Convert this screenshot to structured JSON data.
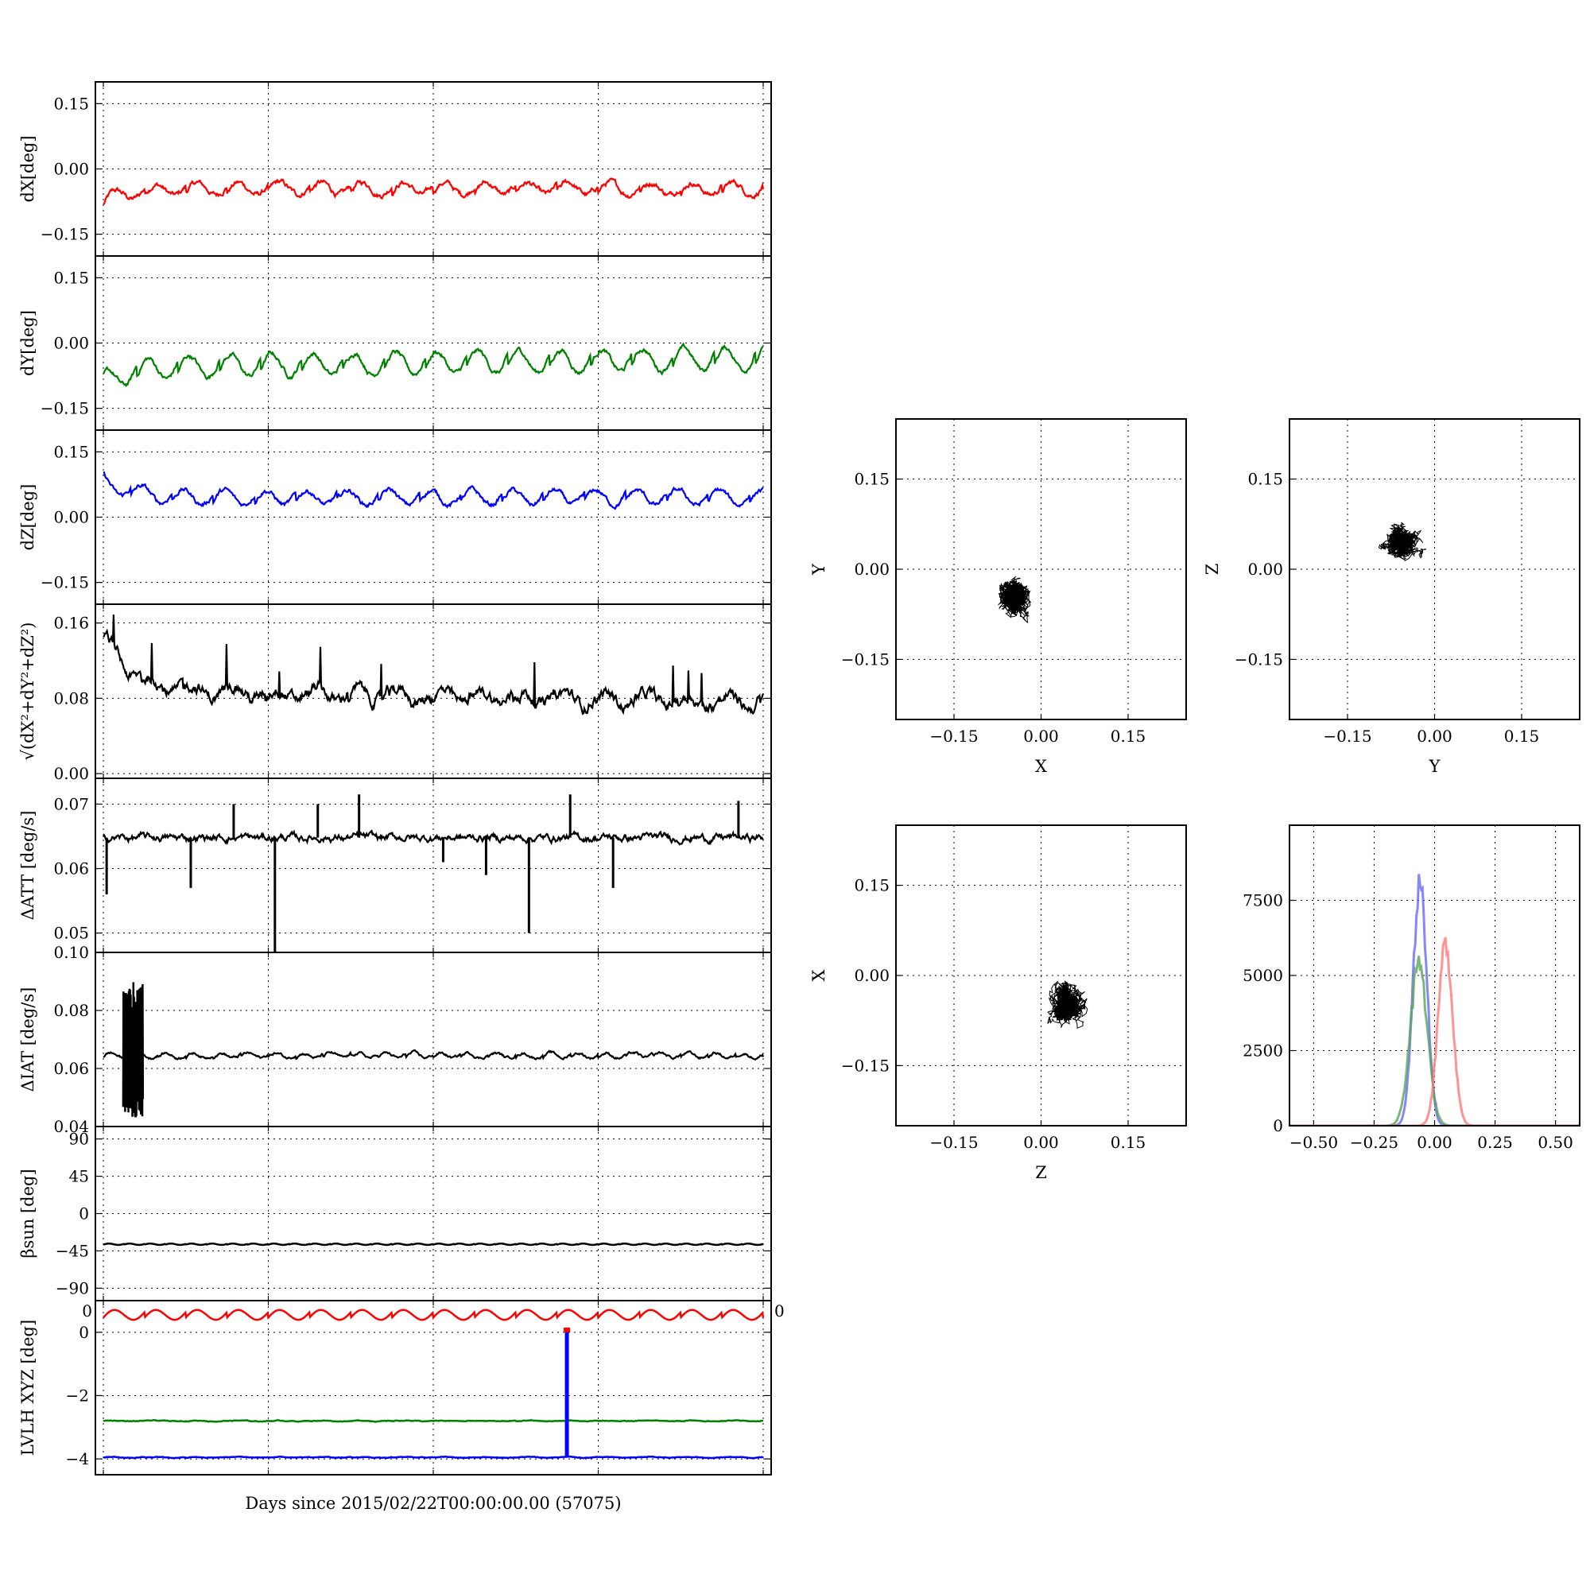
{
  "chart_data": [
    {
      "id": "dx",
      "type": "line",
      "ylabel": "dX[deg]",
      "ylim": [
        -0.2,
        0.2
      ],
      "yticks": [
        -0.15,
        0.0,
        0.15
      ],
      "ytick_labels": [
        "−0.15",
        "0.00",
        "0.15"
      ],
      "xlim": [
        0,
        40
      ],
      "grid": true,
      "series": [
        {
          "color": "#ff0000",
          "baseline": -0.045,
          "amplitude": 0.025,
          "cycles": 16,
          "phase": 0.0,
          "noise": 0.008,
          "trend": 0.0,
          "start_offset": -0.03
        }
      ]
    },
    {
      "id": "dy",
      "type": "line",
      "ylabel": "dY[deg]",
      "ylim": [
        -0.2,
        0.2
      ],
      "yticks": [
        -0.15,
        0.0,
        0.15
      ],
      "ytick_labels": [
        "−0.15",
        "0.00",
        "0.15"
      ],
      "xlim": [
        0,
        40
      ],
      "grid": true,
      "series": [
        {
          "color": "#008000",
          "baseline": -0.055,
          "amplitude": 0.045,
          "cycles": 16,
          "phase": 1.2,
          "noise": 0.007,
          "trend": 0.02,
          "start_offset": -0.04
        }
      ]
    },
    {
      "id": "dz",
      "type": "line",
      "ylabel": "dZ[deg]",
      "ylim": [
        -0.2,
        0.2
      ],
      "yticks": [
        -0.15,
        0.0,
        0.15
      ],
      "ytick_labels": [
        "−0.15",
        "0.00",
        "0.15"
      ],
      "xlim": [
        0,
        40
      ],
      "grid": true,
      "series": [
        {
          "color": "#0000ff",
          "baseline": 0.045,
          "amplitude": 0.03,
          "cycles": 16,
          "phase": 2.1,
          "noise": 0.007,
          "trend": 0.0,
          "start_offset": 0.04
        }
      ]
    },
    {
      "id": "mag",
      "type": "line",
      "ylabel": "√(dX²+dY²+dZ²)",
      "ylim": [
        -0.005,
        0.18
      ],
      "yticks": [
        0.0,
        0.08,
        0.16
      ],
      "ytick_labels": [
        "0.00",
        "0.08",
        "0.16"
      ],
      "xlim": [
        0,
        40
      ],
      "grid": true,
      "series": [
        {
          "color": "#000000",
          "baseline": 0.088,
          "amplitude": 0.012,
          "cycles": 16,
          "phase": 0.5,
          "noise": 0.008,
          "trend": -0.012,
          "start_offset": 0.06
        }
      ]
    },
    {
      "id": "datt",
      "type": "line",
      "ylabel": "ΔATT [deg/s]",
      "ylim": [
        0.047,
        0.074
      ],
      "yticks": [
        0.05,
        0.06,
        0.07
      ],
      "ytick_labels": [
        "0.05",
        "0.06",
        "0.07"
      ],
      "xlim": [
        0,
        40
      ],
      "grid": true,
      "series": [
        {
          "color": "#000000",
          "baseline": 0.0648,
          "amplitude": 0.0001,
          "cycles": 16,
          "phase": 0.0,
          "noise": 0.0007,
          "trend": 0.0,
          "start_offset": 0.0
        }
      ],
      "spikes": [
        {
          "x": 0.2,
          "y": 0.056
        },
        {
          "x": 5.3,
          "y": 0.057
        },
        {
          "x": 7.9,
          "y": 0.07
        },
        {
          "x": 10.4,
          "y": 0.047
        },
        {
          "x": 13.0,
          "y": 0.07
        },
        {
          "x": 15.5,
          "y": 0.0715
        },
        {
          "x": 20.6,
          "y": 0.061
        },
        {
          "x": 23.2,
          "y": 0.059
        },
        {
          "x": 25.8,
          "y": 0.05
        },
        {
          "x": 28.3,
          "y": 0.0715
        },
        {
          "x": 30.9,
          "y": 0.057
        },
        {
          "x": 38.5,
          "y": 0.0705
        }
      ]
    },
    {
      "id": "diat",
      "type": "line",
      "ylabel": "ΔIAT [deg/s]",
      "ylim": [
        0.04,
        0.1
      ],
      "yticks": [
        0.04,
        0.06,
        0.08,
        0.1
      ],
      "ytick_labels": [
        "0.04",
        "0.06",
        "0.08",
        "0.10"
      ],
      "xlim": [
        0,
        40
      ],
      "grid": true,
      "series": [
        {
          "color": "#000000",
          "baseline": 0.0645,
          "amplitude": 0.0015,
          "cycles": 24,
          "phase": 0.0,
          "noise": 0.0006,
          "trend": 0.0,
          "start_offset": 0.0
        }
      ],
      "burst": {
        "x_start": 1.2,
        "x_end": 2.4,
        "y_low": 0.043,
        "y_high": 0.09
      }
    },
    {
      "id": "beta",
      "type": "line",
      "ylabel": "βsun [deg]",
      "ylim": [
        -105,
        105
      ],
      "yticks": [
        -90,
        -45,
        0,
        45,
        90
      ],
      "ytick_labels": [
        "−90",
        "−45",
        "0",
        "45",
        "90"
      ],
      "xlim": [
        0,
        40
      ],
      "grid": true,
      "series": [
        {
          "color": "#000000",
          "baseline": -37,
          "amplitude": 1.5,
          "cycles": 32,
          "phase": 0.0,
          "noise": 0.0,
          "trend": 0.0,
          "start_offset": 0.0
        }
      ]
    },
    {
      "id": "lvlh",
      "type": "line",
      "ylabel": "LVLH XYZ [deg]",
      "xlabel": "Days since 2015/02/22T00:00:00.00 (57075)",
      "ylim": [
        -4.5,
        1.0
      ],
      "yticks": [
        -4,
        -2,
        0
      ],
      "ytick_labels": [
        "−4",
        "−2",
        "0"
      ],
      "corner_labels": [
        "0",
        "0"
      ],
      "xlim": [
        0,
        40
      ],
      "grid": true,
      "series": [
        {
          "color": "#ff0000",
          "baseline": 0.55,
          "amplitude": 0.28,
          "cycles": 16,
          "phase": 0.0,
          "noise": 0.0,
          "trend": 0.0,
          "start_offset": 0.0
        },
        {
          "color": "#008000",
          "baseline": -2.8,
          "amplitude": 0.02,
          "cycles": 16,
          "phase": 0.0,
          "noise": 0.015,
          "trend": 0.0,
          "start_offset": 0.0
        },
        {
          "color": "#0000ff",
          "baseline": -3.95,
          "amplitude": 0.02,
          "cycles": 16,
          "phase": 0.0,
          "noise": 0.012,
          "trend": 0.0,
          "start_offset": 0.0
        }
      ],
      "vline": {
        "x": 28.1,
        "y_from": -3.95,
        "y_to": 0.05,
        "color": "#0000ff"
      }
    },
    {
      "id": "scatter_xy",
      "type": "scatter",
      "xlabel": "X",
      "ylabel": "Y",
      "xlim": [
        -0.25,
        0.25
      ],
      "ylim": [
        -0.25,
        0.25
      ],
      "xticks": [
        -0.15,
        0.0,
        0.15
      ],
      "yticks": [
        -0.15,
        0.0,
        0.15
      ],
      "tick_labels": [
        "−0.15",
        "0.00",
        "0.15"
      ],
      "grid": true,
      "cloud": {
        "cx": -0.045,
        "cy": -0.045,
        "rx": 0.045,
        "ry": 0.05
      },
      "color": "#000000"
    },
    {
      "id": "scatter_yz",
      "type": "scatter",
      "xlabel": "Y",
      "ylabel": "Z",
      "xlim": [
        -0.25,
        0.25
      ],
      "ylim": [
        -0.25,
        0.25
      ],
      "xticks": [
        -0.15,
        0.0,
        0.15
      ],
      "yticks": [
        -0.15,
        0.0,
        0.15
      ],
      "tick_labels": [
        "−0.15",
        "0.00",
        "0.15"
      ],
      "grid": true,
      "cloud": {
        "cx": -0.055,
        "cy": 0.045,
        "rx": 0.05,
        "ry": 0.04
      },
      "color": "#000000"
    },
    {
      "id": "scatter_zx",
      "type": "scatter",
      "xlabel": "Z",
      "ylabel": "X",
      "xlim": [
        -0.25,
        0.25
      ],
      "ylim": [
        -0.25,
        0.25
      ],
      "xticks": [
        -0.15,
        0.0,
        0.15
      ],
      "yticks": [
        -0.15,
        0.0,
        0.15
      ],
      "tick_labels": [
        "−0.15",
        "0.00",
        "0.15"
      ],
      "grid": true,
      "cloud": {
        "cx": 0.045,
        "cy": -0.045,
        "rx": 0.045,
        "ry": 0.05
      },
      "color": "#000000"
    },
    {
      "id": "hist",
      "type": "histogram",
      "xlim": [
        -0.6,
        0.6
      ],
      "ylim": [
        0,
        10000
      ],
      "xticks": [
        -0.5,
        -0.25,
        0.0,
        0.25,
        0.5
      ],
      "xtick_labels": [
        "−0.50",
        "−0.25",
        "0.00",
        "0.25",
        "0.50"
      ],
      "yticks": [
        0,
        2500,
        5000,
        7500
      ],
      "ytick_labels": [
        "0",
        "2500",
        "5000",
        "7500"
      ],
      "grid": true,
      "series": [
        {
          "color": "#6666ff",
          "center": -0.06,
          "width": 0.028,
          "peak": 8500
        },
        {
          "color": "#5aa55a",
          "center": -0.065,
          "width": 0.035,
          "peak": 5600
        },
        {
          "color": "#ff7777",
          "center": 0.045,
          "width": 0.03,
          "peak": 6300
        }
      ]
    }
  ]
}
